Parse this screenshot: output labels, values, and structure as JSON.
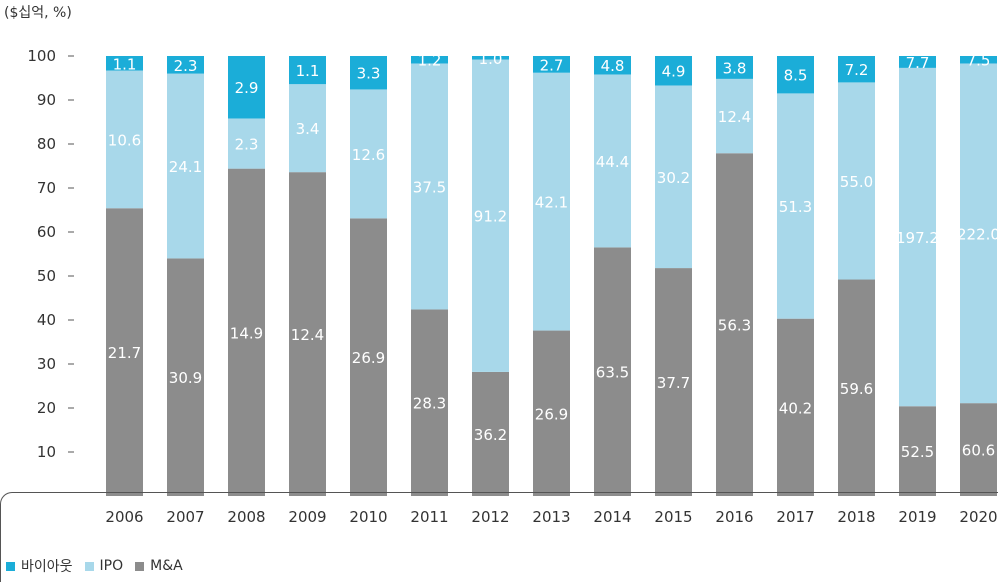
{
  "chart_data": {
    "type": "bar",
    "stacked": true,
    "unit_label": "($십억, %)",
    "ylim": [
      0,
      100
    ],
    "yticks": [
      10,
      20,
      30,
      40,
      50,
      60,
      70,
      80,
      90,
      100
    ],
    "categories": [
      "2006",
      "2007",
      "2008",
      "2009",
      "2010",
      "2011",
      "2012",
      "2013",
      "2014",
      "2015",
      "2016",
      "2017",
      "2018",
      "2019",
      "2020"
    ],
    "series": [
      {
        "name": "M&A",
        "color": "#8c8c8c",
        "percent": [
          65.4,
          54.0,
          74.4,
          73.6,
          63.1,
          42.4,
          28.2,
          37.6,
          56.5,
          51.8,
          77.9,
          40.3,
          49.2,
          20.4,
          21.1
        ],
        "labels": [
          "21.7",
          "30.9",
          "14.9",
          "12.4",
          "26.9",
          "28.3",
          "36.2",
          "26.9",
          "63.5",
          "37.7",
          "56.3",
          "40.2",
          "59.6",
          "52.5",
          "60.6"
        ]
      },
      {
        "name": "IPO",
        "color": "#a8d8ea",
        "percent": [
          31.3,
          42.0,
          11.4,
          20.0,
          29.3,
          55.9,
          71.0,
          58.6,
          39.3,
          41.5,
          16.9,
          51.2,
          44.8,
          76.9,
          77.2
        ],
        "labels": [
          "10.6",
          "24.1",
          "2.3",
          "3.4",
          "12.6",
          "37.5",
          "91.2",
          "42.1",
          "44.4",
          "30.2",
          "12.4",
          "51.3",
          "55.0",
          "197.2",
          "222.0"
        ]
      },
      {
        "name": "바이아웃",
        "color": "#1badd8",
        "percent": [
          3.3,
          4.0,
          14.2,
          6.4,
          7.6,
          1.7,
          0.8,
          3.8,
          4.2,
          6.7,
          5.2,
          8.5,
          6.0,
          2.7,
          1.7
        ],
        "labels": [
          "1.1",
          "2.3",
          "2.9",
          "1.1",
          "3.3",
          "1.2",
          "1.0",
          "2.7",
          "4.8",
          "4.9",
          "3.8",
          "8.5",
          "7.2",
          "7.7",
          "7.5"
        ]
      }
    ],
    "legend": {
      "position": "bottom-left",
      "items": [
        {
          "name": "바이아웃",
          "color": "#1badd8"
        },
        {
          "name": "IPO",
          "color": "#a8d8ea"
        },
        {
          "name": "M&A",
          "color": "#8c8c8c"
        }
      ]
    }
  }
}
